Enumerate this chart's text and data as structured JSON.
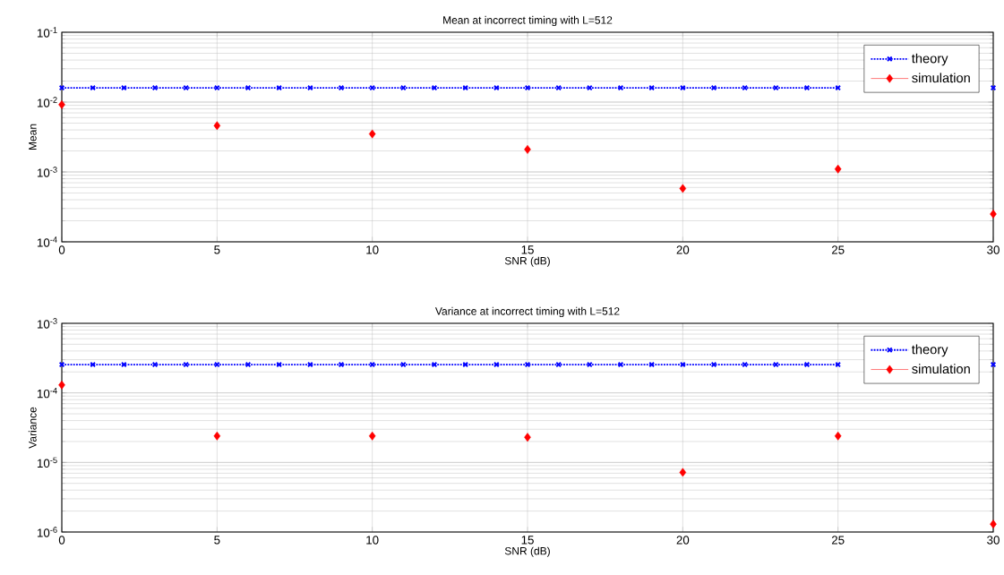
{
  "chart_data": [
    {
      "type": "line",
      "title": "Mean at incorrect timing with L=512",
      "xlabel": "SNR (dB)",
      "ylabel": "Mean",
      "log": "y",
      "xlim": [
        0,
        30
      ],
      "xticks": [
        0,
        5,
        10,
        15,
        20,
        25,
        30
      ],
      "ylim": [
        0.0001,
        0.1
      ],
      "yticks": [
        {
          "value": 0.0001,
          "label": "10$^{-4}$"
        },
        {
          "value": 0.001,
          "label": "10$^{-3}$"
        },
        {
          "value": 0.01,
          "label": "10$^{-2}$"
        },
        {
          "value": 0.1,
          "label": "10$^{-1}$"
        }
      ],
      "grid": true,
      "legend": "top right",
      "series": [
        {
          "name": "theory",
          "color": "#0000ff",
          "line_style": "dotted",
          "marker": "cross",
          "x": [
            0,
            1,
            2,
            3,
            4,
            5,
            6,
            7,
            8,
            9,
            10,
            11,
            12,
            13,
            14,
            15,
            16,
            17,
            18,
            19,
            20,
            21,
            22,
            23,
            24,
            25,
            26,
            27,
            28,
            29,
            30
          ],
          "values": [
            0.016,
            0.016,
            0.016,
            0.016,
            0.016,
            0.016,
            0.016,
            0.016,
            0.016,
            0.016,
            0.016,
            0.016,
            0.016,
            0.016,
            0.016,
            0.016,
            0.016,
            0.016,
            0.016,
            0.016,
            0.016,
            0.016,
            0.016,
            0.016,
            0.016,
            0.016,
            null,
            null,
            null,
            null,
            0.016
          ]
        },
        {
          "name": "simulation",
          "type": "scatter",
          "color": "#ff0000",
          "marker": "diamond",
          "x": [
            0,
            5,
            10,
            15,
            20,
            25,
            30
          ],
          "values": [
            0.0092,
            0.0046,
            0.0035,
            0.0021,
            0.00058,
            0.0011,
            0.00025
          ]
        }
      ]
    },
    {
      "type": "line",
      "title": "Variance at incorrect timing with L=512",
      "xlabel": "SNR (dB)",
      "ylabel": "Variance",
      "log": "y",
      "xlim": [
        0,
        30
      ],
      "xticks": [
        0,
        5,
        10,
        15,
        20,
        25,
        30
      ],
      "ylim": [
        1e-06,
        0.001
      ],
      "yticks": [
        {
          "value": 1e-06,
          "label": "10$^{-6}$"
        },
        {
          "value": 1e-05,
          "label": "10$^{-5}$"
        },
        {
          "value": 0.0001,
          "label": "10$^{-4}$"
        },
        {
          "value": 0.001,
          "label": "10$^{-3}$"
        }
      ],
      "grid": true,
      "legend": "top right",
      "series": [
        {
          "name": "theory",
          "color": "#0000ff",
          "line_style": "dotted",
          "marker": "cross",
          "x": [
            0,
            1,
            2,
            3,
            4,
            5,
            6,
            7,
            8,
            9,
            10,
            11,
            12,
            13,
            14,
            15,
            16,
            17,
            18,
            19,
            20,
            21,
            22,
            23,
            24,
            25,
            26,
            27,
            28,
            29,
            30
          ],
          "values": [
            0.000255,
            0.000255,
            0.000255,
            0.000255,
            0.000255,
            0.000255,
            0.000255,
            0.000255,
            0.000255,
            0.000255,
            0.000255,
            0.000255,
            0.000255,
            0.000255,
            0.000255,
            0.000255,
            0.000255,
            0.000255,
            0.000255,
            0.000255,
            0.000255,
            0.000255,
            0.000255,
            0.000255,
            0.000255,
            0.000255,
            null,
            null,
            null,
            null,
            0.000255
          ]
        },
        {
          "name": "simulation",
          "type": "scatter",
          "color": "#ff0000",
          "marker": "diamond",
          "x": [
            0,
            5,
            10,
            15,
            20,
            25,
            30
          ],
          "values": [
            0.00013,
            2.4e-05,
            2.4e-05,
            2.3e-05,
            7.2e-06,
            2.4e-05,
            1.3e-06
          ]
        }
      ]
    }
  ]
}
